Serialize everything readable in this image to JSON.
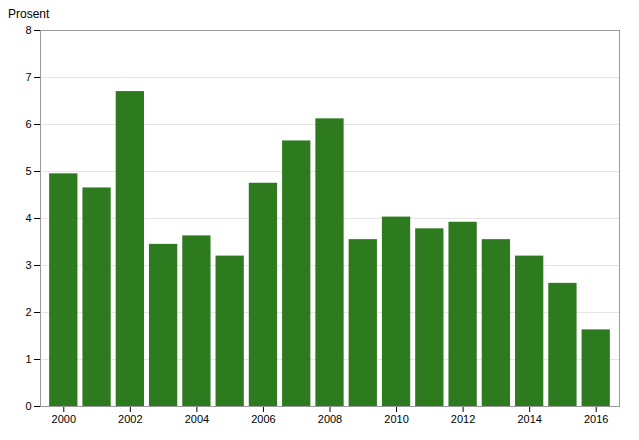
{
  "chart_data": {
    "type": "bar",
    "ylabel": "Prosent",
    "x": [
      2000,
      2001,
      2002,
      2003,
      2004,
      2005,
      2006,
      2007,
      2008,
      2009,
      2010,
      2011,
      2012,
      2013,
      2014,
      2015,
      2016
    ],
    "values": [
      4.95,
      4.65,
      6.7,
      3.45,
      3.63,
      3.2,
      4.75,
      5.65,
      6.12,
      3.55,
      4.03,
      3.78,
      3.92,
      3.55,
      3.2,
      2.62,
      1.63
    ],
    "color": "#2d7a1f",
    "xlim": [
      1999.3,
      2016.7
    ],
    "xticks": [
      2000,
      2002,
      2004,
      2006,
      2008,
      2010,
      2012,
      2014,
      2016
    ],
    "ylim": [
      0,
      8
    ],
    "yticks": [
      0,
      1,
      2,
      3,
      4,
      5,
      6,
      7,
      8
    ],
    "grid": true
  }
}
